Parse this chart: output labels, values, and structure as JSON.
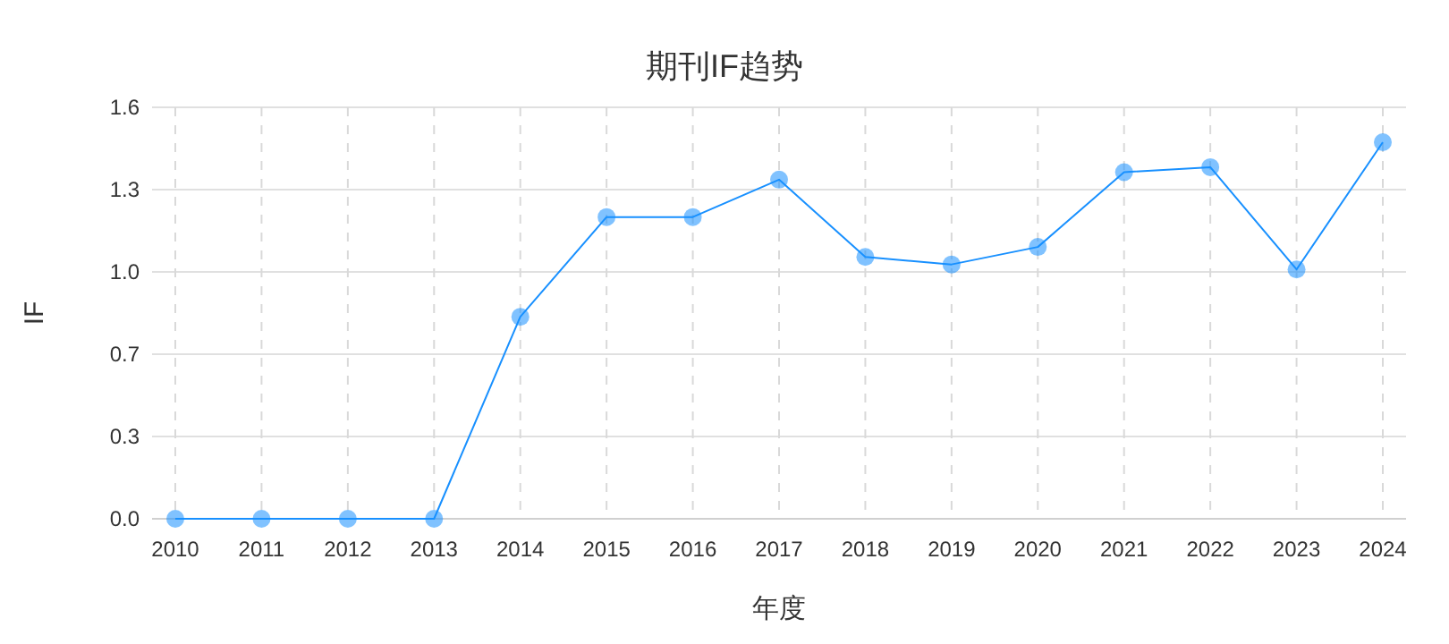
{
  "chart_data": {
    "type": "line",
    "title": "期刊IF趋势",
    "xlabel": "年度",
    "ylabel": "IF",
    "categories": [
      "2010",
      "2011",
      "2012",
      "2013",
      "2014",
      "2015",
      "2016",
      "2017",
      "2018",
      "2019",
      "2020",
      "2021",
      "2022",
      "2023",
      "2024"
    ],
    "series": [
      {
        "color": "#1890ff",
        "values": [
          0,
          0,
          0,
          0,
          0.81,
          1.21,
          1.21,
          1.36,
          1.05,
          1.02,
          1.09,
          1.39,
          1.41,
          1.0,
          1.51
        ]
      }
    ],
    "ylim": [
      0,
      1.65
    ],
    "yticks": [
      {
        "value": 0,
        "label": "0.0"
      },
      {
        "value": 0.33,
        "label": "0.3"
      },
      {
        "value": 0.66,
        "label": "0.7"
      },
      {
        "value": 0.99,
        "label": "1.0"
      },
      {
        "value": 1.32,
        "label": "1.3"
      },
      {
        "value": 1.65,
        "label": "1.6"
      }
    ],
    "grid": true,
    "marker": "circle",
    "line_style": "solid"
  }
}
